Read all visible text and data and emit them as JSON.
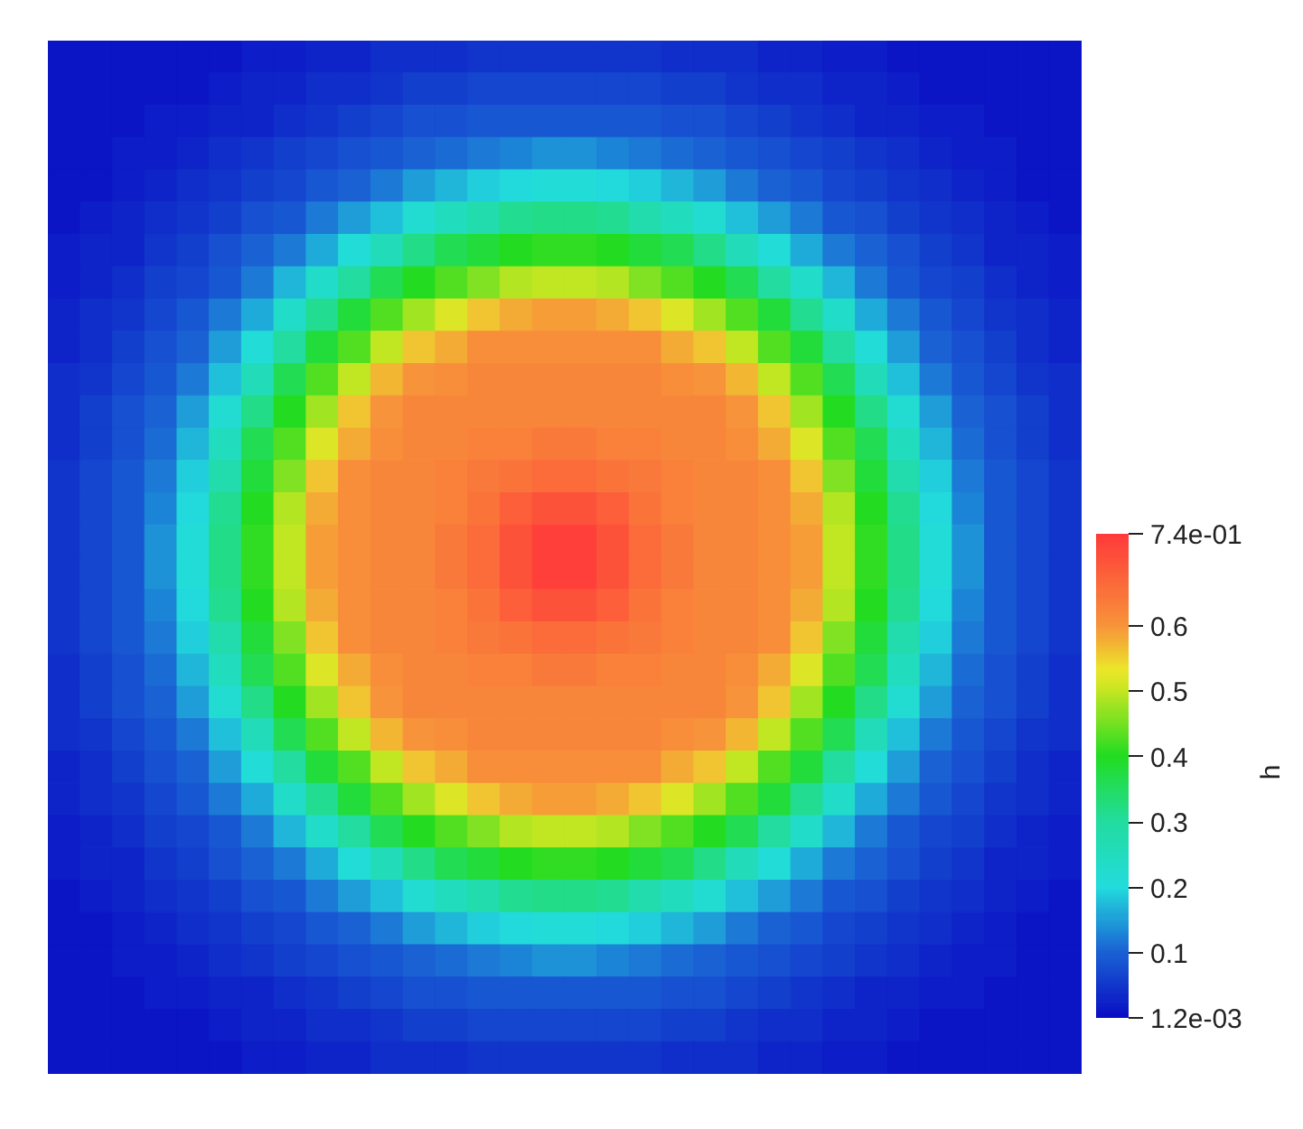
{
  "chart_data": {
    "type": "heatmap",
    "categories": [
      null,
      null,
      null,
      null,
      null,
      null,
      null,
      null,
      null,
      null,
      null,
      null,
      null,
      null,
      null,
      null,
      null,
      null,
      null,
      null,
      null,
      null,
      null,
      null,
      null,
      null,
      null,
      null,
      null,
      null,
      null,
      null
    ],
    "y_categories": [
      null,
      null,
      null,
      null,
      null,
      null,
      null,
      null,
      null,
      null,
      null,
      null,
      null,
      null,
      null,
      null,
      null,
      null,
      null,
      null,
      null,
      null,
      null,
      null,
      null,
      null,
      null,
      null,
      null,
      null,
      null,
      null
    ],
    "cells": [
      [
        0.01,
        0.01,
        0.01,
        0.01,
        0.01,
        0.01,
        0.02,
        0.02,
        0.03,
        0.03,
        0.04,
        0.04,
        0.04,
        0.05,
        0.05,
        0.05,
        0.05,
        0.05,
        0.05,
        0.04,
        0.04,
        0.04,
        0.03,
        0.03,
        0.02,
        0.02,
        0.01,
        0.01,
        0.01,
        0.01,
        0.01,
        0.01
      ],
      [
        0.01,
        0.01,
        0.01,
        0.01,
        0.01,
        0.02,
        0.03,
        0.03,
        0.04,
        0.04,
        0.05,
        0.06,
        0.06,
        0.07,
        0.07,
        0.07,
        0.07,
        0.07,
        0.07,
        0.06,
        0.06,
        0.05,
        0.04,
        0.04,
        0.03,
        0.03,
        0.02,
        0.01,
        0.01,
        0.01,
        0.01,
        0.01
      ],
      [
        0.01,
        0.01,
        0.01,
        0.02,
        0.02,
        0.03,
        0.03,
        0.04,
        0.05,
        0.06,
        0.07,
        0.08,
        0.08,
        0.09,
        0.09,
        0.09,
        0.09,
        0.09,
        0.09,
        0.08,
        0.08,
        0.07,
        0.06,
        0.05,
        0.04,
        0.03,
        0.03,
        0.02,
        0.02,
        0.01,
        0.01,
        0.01
      ],
      [
        0.01,
        0.01,
        0.02,
        0.02,
        0.03,
        0.04,
        0.05,
        0.06,
        0.07,
        0.08,
        0.09,
        0.1,
        0.11,
        0.12,
        0.13,
        0.14,
        0.14,
        0.13,
        0.12,
        0.11,
        0.1,
        0.09,
        0.08,
        0.07,
        0.06,
        0.05,
        0.04,
        0.03,
        0.02,
        0.02,
        0.01,
        0.01
      ],
      [
        0.01,
        0.01,
        0.02,
        0.03,
        0.04,
        0.05,
        0.06,
        0.07,
        0.09,
        0.1,
        0.12,
        0.15,
        0.17,
        0.19,
        0.2,
        0.21,
        0.21,
        0.2,
        0.19,
        0.17,
        0.15,
        0.12,
        0.1,
        0.09,
        0.07,
        0.06,
        0.05,
        0.04,
        0.03,
        0.02,
        0.01,
        0.01
      ],
      [
        0.01,
        0.02,
        0.03,
        0.04,
        0.05,
        0.06,
        0.08,
        0.09,
        0.12,
        0.15,
        0.18,
        0.22,
        0.25,
        0.28,
        0.31,
        0.32,
        0.32,
        0.31,
        0.28,
        0.25,
        0.22,
        0.18,
        0.15,
        0.12,
        0.09,
        0.08,
        0.06,
        0.05,
        0.04,
        0.03,
        0.02,
        0.01
      ],
      [
        0.02,
        0.03,
        0.03,
        0.05,
        0.06,
        0.08,
        0.1,
        0.12,
        0.16,
        0.21,
        0.26,
        0.32,
        0.36,
        0.38,
        0.4,
        0.41,
        0.41,
        0.4,
        0.38,
        0.36,
        0.32,
        0.26,
        0.21,
        0.16,
        0.12,
        0.1,
        0.08,
        0.06,
        0.05,
        0.03,
        0.03,
        0.02
      ],
      [
        0.02,
        0.03,
        0.04,
        0.06,
        0.07,
        0.09,
        0.12,
        0.17,
        0.23,
        0.3,
        0.36,
        0.4,
        0.43,
        0.46,
        0.49,
        0.5,
        0.5,
        0.49,
        0.46,
        0.43,
        0.4,
        0.36,
        0.3,
        0.23,
        0.17,
        0.12,
        0.09,
        0.07,
        0.06,
        0.04,
        0.03,
        0.02
      ],
      [
        0.03,
        0.04,
        0.05,
        0.07,
        0.09,
        0.12,
        0.16,
        0.23,
        0.31,
        0.38,
        0.43,
        0.48,
        0.52,
        0.56,
        0.58,
        0.59,
        0.59,
        0.58,
        0.56,
        0.52,
        0.48,
        0.43,
        0.38,
        0.31,
        0.23,
        0.16,
        0.12,
        0.09,
        0.07,
        0.05,
        0.04,
        0.03
      ],
      [
        0.03,
        0.04,
        0.06,
        0.08,
        0.1,
        0.15,
        0.21,
        0.3,
        0.38,
        0.43,
        0.5,
        0.56,
        0.58,
        0.61,
        0.61,
        0.61,
        0.61,
        0.61,
        0.61,
        0.58,
        0.56,
        0.5,
        0.43,
        0.38,
        0.3,
        0.21,
        0.15,
        0.1,
        0.08,
        0.06,
        0.04,
        0.03
      ],
      [
        0.04,
        0.05,
        0.07,
        0.09,
        0.12,
        0.18,
        0.26,
        0.36,
        0.43,
        0.5,
        0.57,
        0.6,
        0.61,
        0.62,
        0.62,
        0.62,
        0.62,
        0.62,
        0.62,
        0.61,
        0.6,
        0.57,
        0.5,
        0.43,
        0.36,
        0.26,
        0.18,
        0.12,
        0.09,
        0.07,
        0.05,
        0.04
      ],
      [
        0.04,
        0.06,
        0.08,
        0.1,
        0.15,
        0.22,
        0.32,
        0.4,
        0.48,
        0.56,
        0.6,
        0.62,
        0.62,
        0.62,
        0.62,
        0.62,
        0.62,
        0.62,
        0.62,
        0.62,
        0.62,
        0.6,
        0.56,
        0.48,
        0.4,
        0.32,
        0.22,
        0.15,
        0.1,
        0.08,
        0.06,
        0.04
      ],
      [
        0.04,
        0.06,
        0.08,
        0.11,
        0.17,
        0.25,
        0.36,
        0.43,
        0.52,
        0.58,
        0.61,
        0.62,
        0.62,
        0.63,
        0.63,
        0.64,
        0.64,
        0.63,
        0.63,
        0.62,
        0.62,
        0.61,
        0.58,
        0.52,
        0.43,
        0.36,
        0.25,
        0.17,
        0.11,
        0.08,
        0.06,
        0.04
      ],
      [
        0.05,
        0.07,
        0.09,
        0.12,
        0.19,
        0.28,
        0.38,
        0.46,
        0.56,
        0.61,
        0.62,
        0.62,
        0.63,
        0.64,
        0.65,
        0.66,
        0.66,
        0.65,
        0.64,
        0.63,
        0.62,
        0.62,
        0.61,
        0.56,
        0.46,
        0.38,
        0.28,
        0.19,
        0.12,
        0.09,
        0.07,
        0.05
      ],
      [
        0.05,
        0.07,
        0.09,
        0.13,
        0.2,
        0.31,
        0.4,
        0.49,
        0.58,
        0.61,
        0.62,
        0.62,
        0.63,
        0.65,
        0.68,
        0.7,
        0.7,
        0.68,
        0.65,
        0.63,
        0.62,
        0.62,
        0.61,
        0.58,
        0.49,
        0.4,
        0.31,
        0.2,
        0.13,
        0.09,
        0.07,
        0.05
      ],
      [
        0.05,
        0.07,
        0.09,
        0.14,
        0.21,
        0.32,
        0.41,
        0.5,
        0.59,
        0.61,
        0.62,
        0.62,
        0.64,
        0.66,
        0.7,
        0.73,
        0.73,
        0.7,
        0.66,
        0.64,
        0.62,
        0.62,
        0.61,
        0.59,
        0.5,
        0.41,
        0.32,
        0.21,
        0.14,
        0.09,
        0.07,
        0.05
      ],
      [
        0.05,
        0.07,
        0.09,
        0.14,
        0.21,
        0.32,
        0.41,
        0.5,
        0.59,
        0.61,
        0.62,
        0.62,
        0.64,
        0.66,
        0.7,
        0.73,
        0.73,
        0.7,
        0.66,
        0.64,
        0.62,
        0.62,
        0.61,
        0.59,
        0.5,
        0.41,
        0.32,
        0.21,
        0.14,
        0.09,
        0.07,
        0.05
      ],
      [
        0.05,
        0.07,
        0.09,
        0.13,
        0.2,
        0.31,
        0.4,
        0.49,
        0.58,
        0.61,
        0.62,
        0.62,
        0.63,
        0.65,
        0.68,
        0.7,
        0.7,
        0.68,
        0.65,
        0.63,
        0.62,
        0.62,
        0.61,
        0.58,
        0.49,
        0.4,
        0.31,
        0.2,
        0.13,
        0.09,
        0.07,
        0.05
      ],
      [
        0.05,
        0.07,
        0.09,
        0.12,
        0.19,
        0.28,
        0.38,
        0.46,
        0.56,
        0.61,
        0.62,
        0.62,
        0.63,
        0.64,
        0.65,
        0.66,
        0.66,
        0.65,
        0.64,
        0.63,
        0.62,
        0.62,
        0.61,
        0.56,
        0.46,
        0.38,
        0.28,
        0.19,
        0.12,
        0.09,
        0.07,
        0.05
      ],
      [
        0.04,
        0.06,
        0.08,
        0.11,
        0.17,
        0.25,
        0.36,
        0.43,
        0.52,
        0.58,
        0.61,
        0.62,
        0.62,
        0.63,
        0.63,
        0.64,
        0.64,
        0.63,
        0.63,
        0.62,
        0.62,
        0.61,
        0.58,
        0.52,
        0.43,
        0.36,
        0.25,
        0.17,
        0.11,
        0.08,
        0.06,
        0.04
      ],
      [
        0.04,
        0.06,
        0.08,
        0.1,
        0.15,
        0.22,
        0.32,
        0.4,
        0.48,
        0.56,
        0.6,
        0.62,
        0.62,
        0.62,
        0.62,
        0.62,
        0.62,
        0.62,
        0.62,
        0.62,
        0.62,
        0.6,
        0.56,
        0.48,
        0.4,
        0.32,
        0.22,
        0.15,
        0.1,
        0.08,
        0.06,
        0.04
      ],
      [
        0.04,
        0.05,
        0.07,
        0.09,
        0.12,
        0.18,
        0.26,
        0.36,
        0.43,
        0.5,
        0.57,
        0.6,
        0.61,
        0.62,
        0.62,
        0.62,
        0.62,
        0.62,
        0.62,
        0.61,
        0.6,
        0.57,
        0.5,
        0.43,
        0.36,
        0.26,
        0.18,
        0.12,
        0.09,
        0.07,
        0.05,
        0.04
      ],
      [
        0.03,
        0.04,
        0.06,
        0.08,
        0.1,
        0.15,
        0.21,
        0.3,
        0.38,
        0.43,
        0.5,
        0.56,
        0.58,
        0.61,
        0.61,
        0.61,
        0.61,
        0.61,
        0.61,
        0.58,
        0.56,
        0.5,
        0.43,
        0.38,
        0.3,
        0.21,
        0.15,
        0.1,
        0.08,
        0.06,
        0.04,
        0.03
      ],
      [
        0.03,
        0.04,
        0.05,
        0.07,
        0.09,
        0.12,
        0.16,
        0.23,
        0.31,
        0.38,
        0.43,
        0.48,
        0.52,
        0.56,
        0.58,
        0.59,
        0.59,
        0.58,
        0.56,
        0.52,
        0.48,
        0.43,
        0.38,
        0.31,
        0.23,
        0.16,
        0.12,
        0.09,
        0.07,
        0.05,
        0.04,
        0.03
      ],
      [
        0.02,
        0.03,
        0.04,
        0.06,
        0.07,
        0.09,
        0.12,
        0.17,
        0.23,
        0.3,
        0.36,
        0.4,
        0.43,
        0.46,
        0.49,
        0.5,
        0.5,
        0.49,
        0.46,
        0.43,
        0.4,
        0.36,
        0.3,
        0.23,
        0.17,
        0.12,
        0.09,
        0.07,
        0.06,
        0.04,
        0.03,
        0.02
      ],
      [
        0.02,
        0.03,
        0.03,
        0.05,
        0.06,
        0.08,
        0.1,
        0.12,
        0.16,
        0.21,
        0.26,
        0.32,
        0.36,
        0.38,
        0.4,
        0.41,
        0.41,
        0.4,
        0.38,
        0.36,
        0.32,
        0.26,
        0.21,
        0.16,
        0.12,
        0.1,
        0.08,
        0.06,
        0.05,
        0.03,
        0.03,
        0.02
      ],
      [
        0.01,
        0.02,
        0.03,
        0.04,
        0.05,
        0.06,
        0.08,
        0.09,
        0.12,
        0.15,
        0.18,
        0.22,
        0.25,
        0.28,
        0.31,
        0.32,
        0.32,
        0.31,
        0.28,
        0.25,
        0.22,
        0.18,
        0.15,
        0.12,
        0.09,
        0.08,
        0.06,
        0.05,
        0.04,
        0.03,
        0.02,
        0.01
      ],
      [
        0.01,
        0.01,
        0.02,
        0.03,
        0.04,
        0.05,
        0.06,
        0.07,
        0.09,
        0.1,
        0.12,
        0.15,
        0.17,
        0.19,
        0.2,
        0.21,
        0.21,
        0.2,
        0.19,
        0.17,
        0.15,
        0.12,
        0.1,
        0.09,
        0.07,
        0.06,
        0.05,
        0.04,
        0.03,
        0.02,
        0.01,
        0.01
      ],
      [
        0.01,
        0.01,
        0.02,
        0.02,
        0.03,
        0.04,
        0.05,
        0.06,
        0.07,
        0.08,
        0.09,
        0.1,
        0.11,
        0.12,
        0.13,
        0.14,
        0.14,
        0.13,
        0.12,
        0.11,
        0.1,
        0.09,
        0.08,
        0.07,
        0.06,
        0.05,
        0.04,
        0.03,
        0.02,
        0.02,
        0.01,
        0.01
      ],
      [
        0.01,
        0.01,
        0.01,
        0.02,
        0.02,
        0.03,
        0.03,
        0.04,
        0.05,
        0.06,
        0.07,
        0.08,
        0.08,
        0.09,
        0.09,
        0.09,
        0.09,
        0.09,
        0.09,
        0.08,
        0.08,
        0.07,
        0.06,
        0.05,
        0.04,
        0.03,
        0.03,
        0.02,
        0.02,
        0.01,
        0.01,
        0.01
      ],
      [
        0.01,
        0.01,
        0.01,
        0.01,
        0.01,
        0.02,
        0.03,
        0.03,
        0.04,
        0.04,
        0.05,
        0.06,
        0.06,
        0.07,
        0.07,
        0.07,
        0.07,
        0.07,
        0.07,
        0.06,
        0.06,
        0.05,
        0.04,
        0.04,
        0.03,
        0.03,
        0.02,
        0.01,
        0.01,
        0.01,
        0.01,
        0.01
      ],
      [
        0.01,
        0.01,
        0.01,
        0.01,
        0.01,
        0.01,
        0.02,
        0.02,
        0.03,
        0.03,
        0.04,
        0.04,
        0.04,
        0.05,
        0.05,
        0.05,
        0.05,
        0.05,
        0.05,
        0.04,
        0.04,
        0.04,
        0.03,
        0.03,
        0.02,
        0.02,
        0.01,
        0.01,
        0.01,
        0.01,
        0.01,
        0.01
      ]
    ],
    "clim": [
      0.0012,
      0.74
    ],
    "cticks": [
      {
        "value": 0.0012,
        "label": "1.2e-03"
      },
      0.1,
      0.2,
      0.3,
      0.4,
      0.5,
      0.6,
      {
        "value": 0.74,
        "label": "7.4e-01"
      }
    ],
    "clabel": "h"
  }
}
